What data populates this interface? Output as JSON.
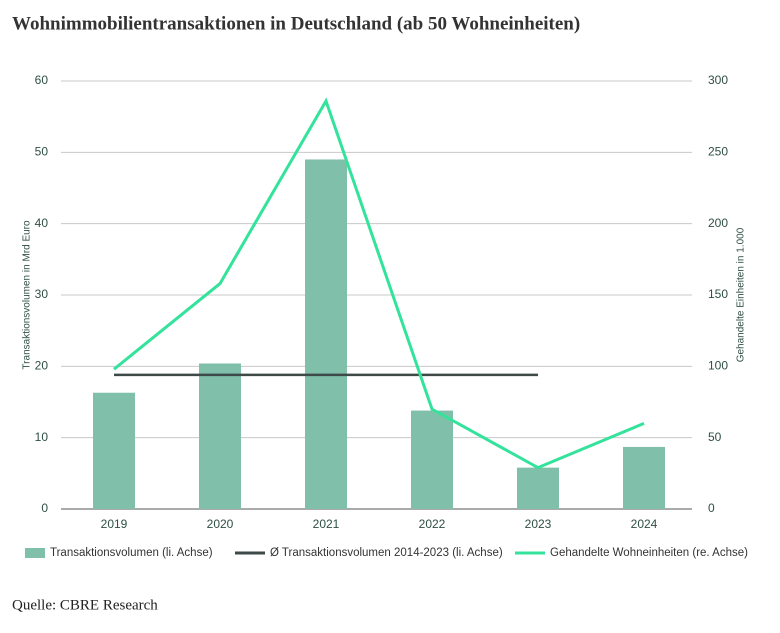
{
  "chart_data": {
    "type": "bar",
    "title": "Wohnimmobilientransaktionen in Deutschland (ab 50 Wohneinheiten)",
    "ylabel": "Transaktionsvolumen in Mrd Euro",
    "y2label": "Gehandelte Einheiten in 1.000",
    "source": "Quelle: CBRE Research",
    "categories": [
      "2019",
      "2020",
      "2021",
      "2022",
      "2023",
      "2024"
    ],
    "series": [
      {
        "name": "Transaktionsvolumen (li. Achse)",
        "type": "bar",
        "color": "#80bfaa",
        "values": [
          16.3,
          20.4,
          49,
          13.8,
          5.8,
          8.7
        ]
      },
      {
        "name": "Ø Transaktionsvolumen 2014-2023 (li. Achse)",
        "type": "line",
        "color": "#3d4a47",
        "values": [
          18.8,
          18.8,
          18.8,
          18.8,
          18.8,
          null
        ]
      },
      {
        "name": "Gehandelte Wohneinheiten (re. Achse)",
        "type": "line",
        "axis": "y2",
        "color": "#34e39b",
        "values": [
          98,
          158,
          286,
          70,
          29,
          60
        ]
      }
    ],
    "ylim": [
      0,
      60
    ],
    "yticks": [
      0,
      10,
      20,
      30,
      40,
      50,
      60
    ],
    "y2lim": [
      0,
      300
    ],
    "y2ticks": [
      0,
      50,
      100,
      150,
      200,
      250,
      300
    ],
    "grid": true,
    "legend": "bottom"
  }
}
